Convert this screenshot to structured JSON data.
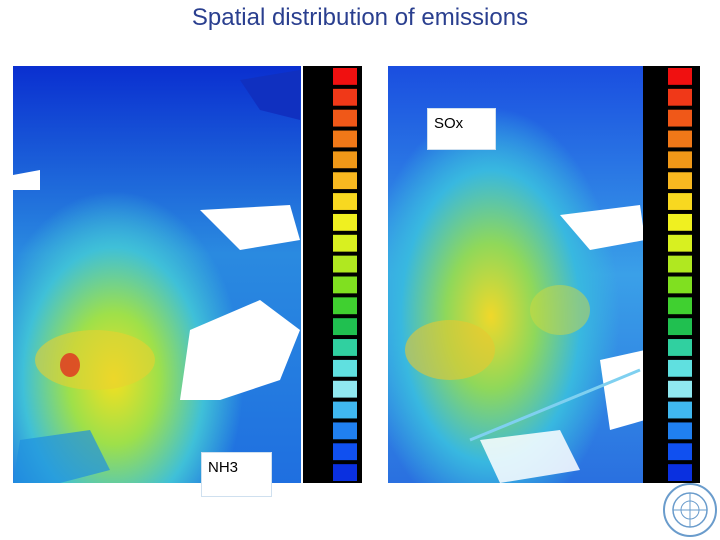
{
  "title": "Spatial distribution of emissions",
  "maps": [
    {
      "label": "NH3"
    },
    {
      "label": "SOx"
    }
  ]
}
